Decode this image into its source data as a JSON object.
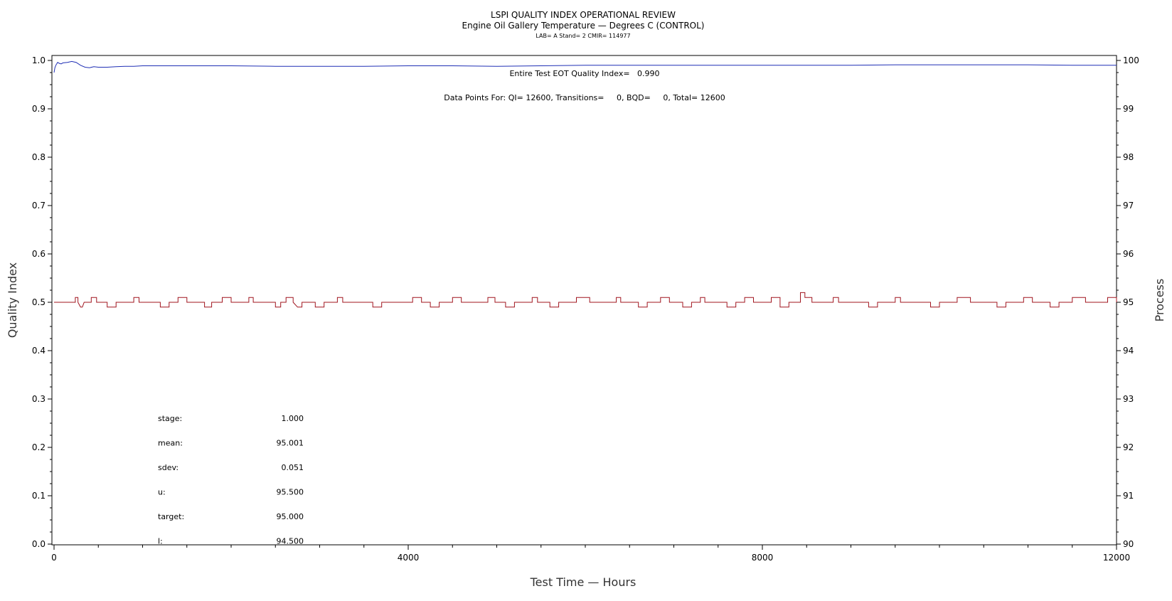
{
  "chart_data": {
    "type": "line",
    "title": "LSPI QUALITY INDEX OPERATIONAL REVIEW",
    "subtitle": "Engine Oil Gallery Temperature — Degrees C (CONTROL)",
    "subtitle2": "LAB= A Stand= 2 CMIR= 114977",
    "xlabel": "Test Time — Hours",
    "ylabel": "Quality Index",
    "y2label": "Process",
    "xlim": [
      0,
      12000
    ],
    "ylim": [
      0,
      1.0
    ],
    "y2lim": [
      90,
      100
    ],
    "x_ticks": [
      0,
      4000,
      8000,
      12000
    ],
    "x_tick_labels": [
      "0",
      "4000",
      "8000",
      "12000"
    ],
    "y_ticks": [
      0.0,
      0.1,
      0.2,
      0.3,
      0.4,
      0.5,
      0.6,
      0.7,
      0.8,
      0.9,
      1.0
    ],
    "y_tick_labels": [
      "0.0",
      "0.1",
      "0.2",
      "0.3",
      "0.4",
      "0.5",
      "0.6",
      "0.7",
      "0.8",
      "0.9",
      "1.0"
    ],
    "y2_ticks": [
      90,
      91,
      92,
      93,
      94,
      95,
      96,
      97,
      98,
      99,
      100
    ],
    "y2_tick_labels": [
      "90",
      "91",
      "92",
      "93",
      "94",
      "95",
      "96",
      "97",
      "98",
      "99",
      "100"
    ],
    "grid": false,
    "colors": {
      "quality_index": "#1f2fb5",
      "process": "#a0141e"
    },
    "annotations": {
      "quality_index_text": "Entire Test EOT Quality Index=   0.990",
      "data_points_text": "Data Points For: QI= 12600, Transitions=     0, BQD=     0, Total= 12600"
    },
    "stats": [
      {
        "label": "stage:",
        "value": "1.000"
      },
      {
        "label": "mean:",
        "value": "95.001"
      },
      {
        "label": "sdev:",
        "value": "0.051"
      },
      {
        "label": "u:",
        "value": "95.500"
      },
      {
        "label": "target:",
        "value": "95.000"
      },
      {
        "label": "l:",
        "value": "94.500"
      }
    ],
    "series": [
      {
        "axis": "left",
        "color": "#1f2fb5",
        "points": [
          [
            0,
            0.975
          ],
          [
            10,
            0.985
          ],
          [
            20,
            0.99
          ],
          [
            40,
            0.996
          ],
          [
            60,
            0.994
          ],
          [
            80,
            0.993
          ],
          [
            100,
            0.995
          ],
          [
            150,
            0.996
          ],
          [
            200,
            0.998
          ],
          [
            250,
            0.996
          ],
          [
            300,
            0.99
          ],
          [
            350,
            0.986
          ],
          [
            400,
            0.985
          ],
          [
            450,
            0.987
          ],
          [
            500,
            0.986
          ],
          [
            600,
            0.986
          ],
          [
            700,
            0.987
          ],
          [
            800,
            0.988
          ],
          [
            900,
            0.988
          ],
          [
            1000,
            0.989
          ],
          [
            1200,
            0.989
          ],
          [
            1500,
            0.989
          ],
          [
            2000,
            0.989
          ],
          [
            2500,
            0.988
          ],
          [
            3000,
            0.988
          ],
          [
            3500,
            0.988
          ],
          [
            4000,
            0.989
          ],
          [
            4500,
            0.989
          ],
          [
            5000,
            0.988
          ],
          [
            5500,
            0.989
          ],
          [
            6000,
            0.99
          ],
          [
            6500,
            0.99
          ],
          [
            7000,
            0.99
          ],
          [
            7500,
            0.99
          ],
          [
            8000,
            0.99
          ],
          [
            8500,
            0.99
          ],
          [
            9000,
            0.99
          ],
          [
            9500,
            0.991
          ],
          [
            10000,
            0.991
          ],
          [
            10500,
            0.991
          ],
          [
            11000,
            0.991
          ],
          [
            11500,
            0.99
          ],
          [
            12000,
            0.99
          ]
        ]
      },
      {
        "axis": "right",
        "color": "#a0141e",
        "points": [
          [
            0,
            95.0
          ],
          [
            240,
            95.0
          ],
          [
            240,
            95.1
          ],
          [
            270,
            95.1
          ],
          [
            270,
            95.0
          ],
          [
            300,
            94.9
          ],
          [
            320,
            94.9
          ],
          [
            340,
            95.0
          ],
          [
            420,
            95.0
          ],
          [
            420,
            95.1
          ],
          [
            480,
            95.1
          ],
          [
            480,
            95.0
          ],
          [
            600,
            95.0
          ],
          [
            600,
            94.9
          ],
          [
            700,
            94.9
          ],
          [
            700,
            95.0
          ],
          [
            900,
            95.0
          ],
          [
            900,
            95.1
          ],
          [
            960,
            95.1
          ],
          [
            960,
            95.0
          ],
          [
            1200,
            95.0
          ],
          [
            1200,
            94.9
          ],
          [
            1300,
            94.9
          ],
          [
            1300,
            95.0
          ],
          [
            1400,
            95.0
          ],
          [
            1400,
            95.1
          ],
          [
            1500,
            95.1
          ],
          [
            1500,
            95.0
          ],
          [
            1700,
            95.0
          ],
          [
            1700,
            94.9
          ],
          [
            1780,
            94.9
          ],
          [
            1780,
            95.0
          ],
          [
            1900,
            95.0
          ],
          [
            1900,
            95.1
          ],
          [
            2000,
            95.1
          ],
          [
            2000,
            95.0
          ],
          [
            2200,
            95.0
          ],
          [
            2200,
            95.1
          ],
          [
            2250,
            95.1
          ],
          [
            2250,
            95.0
          ],
          [
            2500,
            95.0
          ],
          [
            2500,
            94.9
          ],
          [
            2560,
            94.9
          ],
          [
            2560,
            95.0
          ],
          [
            2620,
            95.0
          ],
          [
            2620,
            95.1
          ],
          [
            2700,
            95.1
          ],
          [
            2700,
            95.0
          ],
          [
            2750,
            94.9
          ],
          [
            2800,
            94.9
          ],
          [
            2800,
            95.0
          ],
          [
            2950,
            95.0
          ],
          [
            2950,
            94.9
          ],
          [
            3050,
            94.9
          ],
          [
            3050,
            95.0
          ],
          [
            3200,
            95.0
          ],
          [
            3200,
            95.1
          ],
          [
            3260,
            95.1
          ],
          [
            3260,
            95.0
          ],
          [
            3600,
            95.0
          ],
          [
            3600,
            94.9
          ],
          [
            3700,
            94.9
          ],
          [
            3700,
            95.0
          ],
          [
            4050,
            95.0
          ],
          [
            4050,
            95.1
          ],
          [
            4150,
            95.1
          ],
          [
            4150,
            95.0
          ],
          [
            4250,
            95.0
          ],
          [
            4250,
            94.9
          ],
          [
            4350,
            94.9
          ],
          [
            4350,
            95.0
          ],
          [
            4500,
            95.0
          ],
          [
            4500,
            95.1
          ],
          [
            4600,
            95.1
          ],
          [
            4600,
            95.0
          ],
          [
            4900,
            95.0
          ],
          [
            4900,
            95.1
          ],
          [
            4980,
            95.1
          ],
          [
            4980,
            95.0
          ],
          [
            5100,
            95.0
          ],
          [
            5100,
            94.9
          ],
          [
            5200,
            94.9
          ],
          [
            5200,
            95.0
          ],
          [
            5400,
            95.0
          ],
          [
            5400,
            95.1
          ],
          [
            5460,
            95.1
          ],
          [
            5460,
            95.0
          ],
          [
            5600,
            95.0
          ],
          [
            5600,
            94.9
          ],
          [
            5700,
            94.9
          ],
          [
            5700,
            95.0
          ],
          [
            5900,
            95.0
          ],
          [
            5900,
            95.1
          ],
          [
            6050,
            95.1
          ],
          [
            6050,
            95.0
          ],
          [
            6350,
            95.0
          ],
          [
            6350,
            95.1
          ],
          [
            6400,
            95.1
          ],
          [
            6400,
            95.0
          ],
          [
            6600,
            95.0
          ],
          [
            6600,
            94.9
          ],
          [
            6700,
            94.9
          ],
          [
            6700,
            95.0
          ],
          [
            6850,
            95.0
          ],
          [
            6850,
            95.1
          ],
          [
            6950,
            95.1
          ],
          [
            6950,
            95.0
          ],
          [
            7100,
            95.0
          ],
          [
            7100,
            94.9
          ],
          [
            7200,
            94.9
          ],
          [
            7200,
            95.0
          ],
          [
            7300,
            95.0
          ],
          [
            7300,
            95.1
          ],
          [
            7350,
            95.1
          ],
          [
            7350,
            95.0
          ],
          [
            7600,
            95.0
          ],
          [
            7600,
            94.9
          ],
          [
            7700,
            94.9
          ],
          [
            7700,
            95.0
          ],
          [
            7800,
            95.0
          ],
          [
            7800,
            95.1
          ],
          [
            7900,
            95.1
          ],
          [
            7900,
            95.0
          ],
          [
            8100,
            95.0
          ],
          [
            8100,
            95.1
          ],
          [
            8200,
            95.1
          ],
          [
            8200,
            94.9
          ],
          [
            8300,
            94.9
          ],
          [
            8300,
            95.0
          ],
          [
            8430,
            95.0
          ],
          [
            8430,
            95.2
          ],
          [
            8480,
            95.2
          ],
          [
            8480,
            95.1
          ],
          [
            8560,
            95.1
          ],
          [
            8560,
            95.0
          ],
          [
            8800,
            95.0
          ],
          [
            8800,
            95.1
          ],
          [
            8860,
            95.1
          ],
          [
            8860,
            95.0
          ],
          [
            9200,
            95.0
          ],
          [
            9200,
            94.9
          ],
          [
            9300,
            94.9
          ],
          [
            9300,
            95.0
          ],
          [
            9500,
            95.0
          ],
          [
            9500,
            95.1
          ],
          [
            9560,
            95.1
          ],
          [
            9560,
            95.0
          ],
          [
            9900,
            95.0
          ],
          [
            9900,
            94.9
          ],
          [
            10000,
            94.9
          ],
          [
            10000,
            95.0
          ],
          [
            10200,
            95.0
          ],
          [
            10200,
            95.1
          ],
          [
            10350,
            95.1
          ],
          [
            10350,
            95.0
          ],
          [
            10650,
            95.0
          ],
          [
            10650,
            94.9
          ],
          [
            10750,
            94.9
          ],
          [
            10750,
            95.0
          ],
          [
            10950,
            95.0
          ],
          [
            10950,
            95.1
          ],
          [
            11050,
            95.1
          ],
          [
            11050,
            95.0
          ],
          [
            11250,
            95.0
          ],
          [
            11250,
            94.9
          ],
          [
            11350,
            94.9
          ],
          [
            11350,
            95.0
          ],
          [
            11500,
            95.0
          ],
          [
            11500,
            95.1
          ],
          [
            11650,
            95.1
          ],
          [
            11650,
            95.0
          ],
          [
            11900,
            95.0
          ],
          [
            11900,
            95.1
          ],
          [
            12000,
            95.1
          ],
          [
            12000,
            95.0
          ]
        ]
      }
    ]
  }
}
